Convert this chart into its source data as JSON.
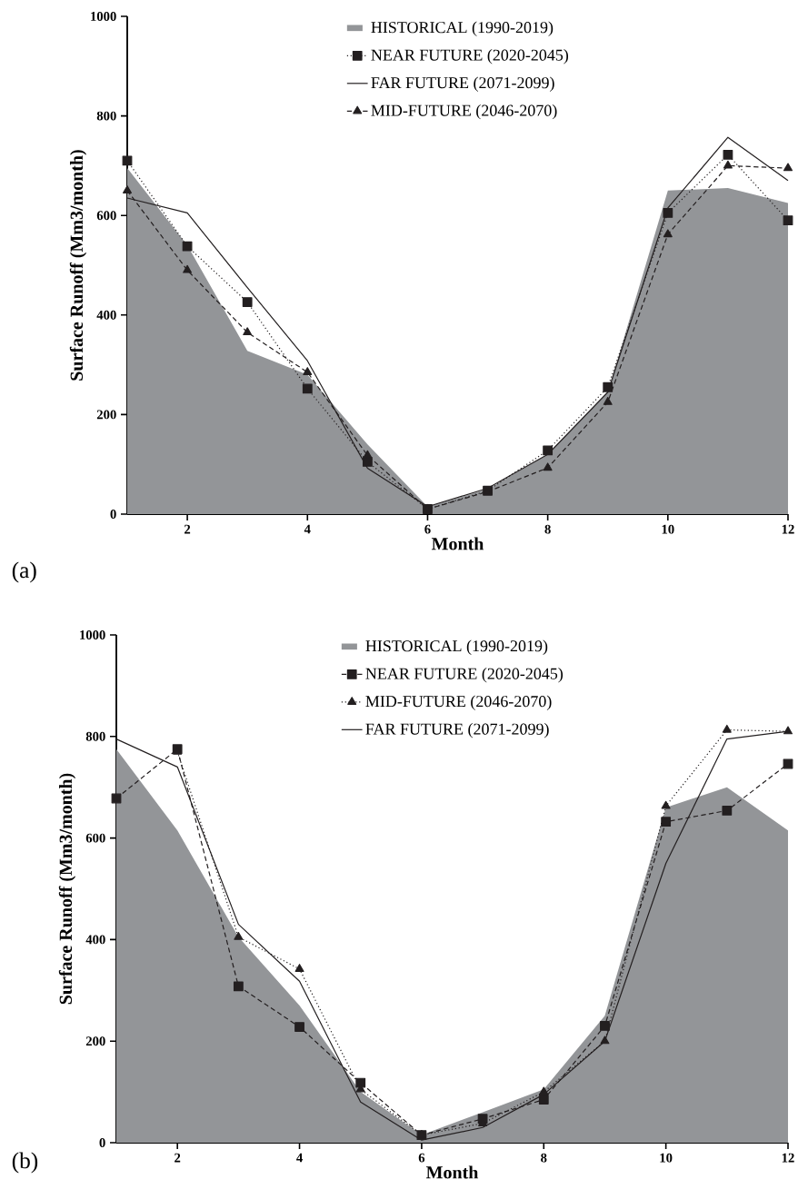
{
  "chart_data": [
    {
      "type": "line",
      "xlabel": "Month",
      "ylabel": "Surface Runoff (Mm3/month)",
      "annotations": [
        "(a)"
      ],
      "x": [
        1,
        2,
        3,
        4,
        5,
        6,
        7,
        8,
        9,
        10,
        11,
        12
      ],
      "xlim": [
        1,
        12
      ],
      "ylim": [
        0,
        1000
      ],
      "xticks": [
        2,
        4,
        6,
        8,
        10,
        12
      ],
      "yticks": [
        0,
        200,
        400,
        600,
        800,
        1000
      ],
      "legend": "top",
      "series": [
        {
          "name": "HISTORICAL (1990-2019)",
          "type": "area",
          "color": "#939598",
          "values": [
            695,
            540,
            328,
            280,
            140,
            15,
            50,
            120,
            245,
            650,
            655,
            625
          ]
        },
        {
          "name": "NEAR FUTURE (2020-2045)",
          "color": "#231f20",
          "marker": "square",
          "line_style": "dotted",
          "values": [
            710,
            538,
            426,
            252,
            105,
            10,
            47,
            128,
            255,
            605,
            722,
            590
          ]
        },
        {
          "name": "FAR FUTURE (2071-2099)",
          "color": "#231f20",
          "marker": "none",
          "line_style": "solid",
          "values": [
            635,
            605,
            455,
            308,
            92,
            15,
            52,
            120,
            245,
            615,
            757,
            670
          ]
        },
        {
          "name": "MID-FUTURE (2046-2070)",
          "color": "#231f20",
          "marker": "triangle",
          "line_style": "dashed",
          "values": [
            650,
            490,
            365,
            285,
            118,
            10,
            45,
            93,
            225,
            562,
            700,
            695
          ]
        }
      ]
    },
    {
      "type": "line",
      "xlabel": "Month",
      "ylabel": "Surface Runoff (Mm3/month)",
      "annotations": [
        "(b)"
      ],
      "x": [
        1,
        2,
        3,
        4,
        5,
        6,
        7,
        8,
        9,
        10,
        11,
        12
      ],
      "xlim": [
        1,
        12
      ],
      "ylim": [
        0,
        1000
      ],
      "xticks": [
        2,
        4,
        6,
        8,
        10,
        12
      ],
      "yticks": [
        0,
        200,
        400,
        600,
        800,
        1000
      ],
      "legend": "top",
      "series": [
        {
          "name": "HISTORICAL (1990-2019)",
          "type": "area",
          "color": "#939598",
          "values": [
            775,
            615,
            405,
            270,
            100,
            15,
            60,
            105,
            250,
            660,
            700,
            615
          ]
        },
        {
          "name": "NEAR FUTURE (2020-2045)",
          "color": "#231f20",
          "marker": "square",
          "line_style": "dashed",
          "values": [
            678,
            775,
            308,
            228,
            118,
            15,
            47,
            85,
            230,
            632,
            654,
            746
          ]
        },
        {
          "name": "MID-FUTURE (2046-2070)",
          "color": "#231f20",
          "marker": "triangle",
          "line_style": "dotted",
          "values": [
            null,
            770,
            405,
            342,
            105,
            15,
            38,
            100,
            200,
            663,
            813,
            810
          ]
        },
        {
          "name": "FAR FUTURE (2071-2099)",
          "color": "#231f20",
          "marker": "none",
          "line_style": "solid",
          "values": [
            795,
            740,
            430,
            318,
            80,
            5,
            30,
            95,
            200,
            550,
            795,
            810
          ]
        }
      ]
    }
  ]
}
